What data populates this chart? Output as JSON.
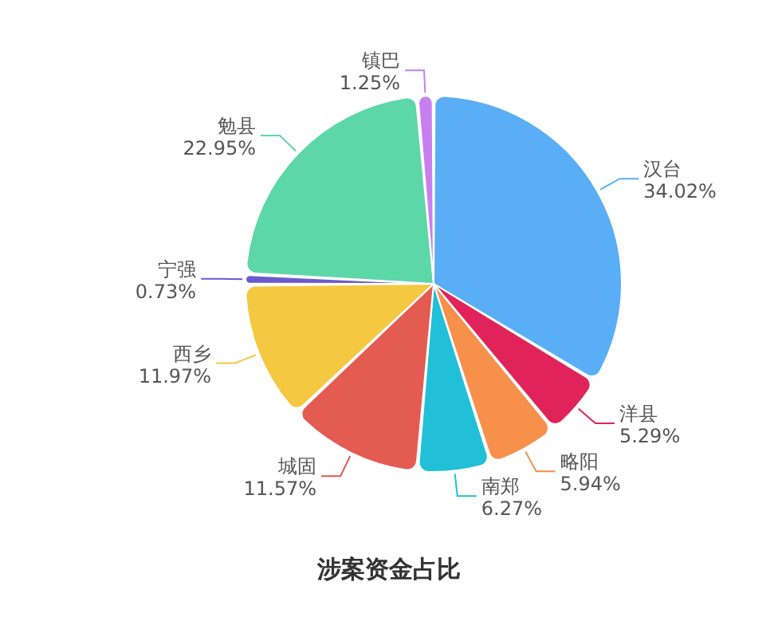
{
  "chart_data": {
    "type": "pie",
    "title": "涉案资金占比",
    "categories": [
      "汉台",
      "洋县",
      "略阳",
      "南郑",
      "城固",
      "西乡",
      "宁强",
      "勉县",
      "镇巴"
    ],
    "values": [
      34.02,
      5.29,
      5.94,
      6.27,
      11.57,
      11.97,
      0.73,
      22.95,
      1.25
    ],
    "value_labels": [
      "34.02%",
      "5.29%",
      "5.94%",
      "6.27%",
      "11.57%",
      "11.97%",
      "0.73%",
      "22.95%",
      "1.25%"
    ],
    "colors": [
      "#5aaef5",
      "#e0245a",
      "#f7904a",
      "#22bfd8",
      "#e45b52",
      "#f5c842",
      "#6a5acd",
      "#5dd6a8",
      "#c77ff0"
    ]
  }
}
